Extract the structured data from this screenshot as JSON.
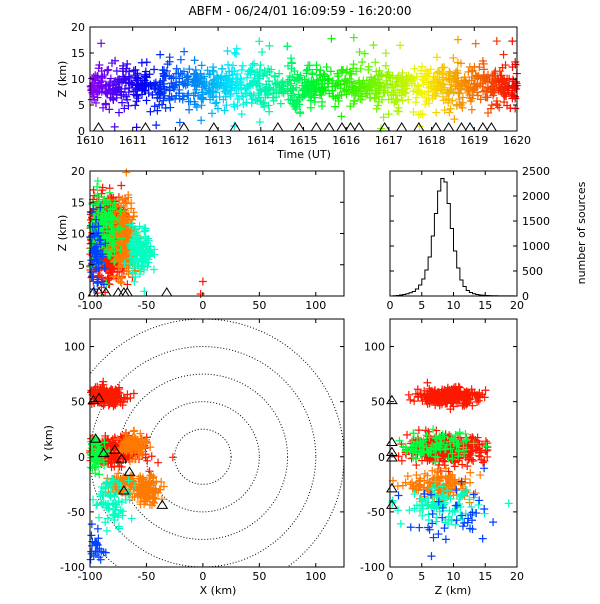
{
  "title": "ABFM - 06/24/01 16:09:59 - 16:20:00",
  "chart_data": [
    {
      "id": "time_height",
      "type": "scatter",
      "xlabel": "Time (UT)",
      "ylabel": "Z (km)",
      "xlim": [
        1610,
        1620
      ],
      "ylim": [
        0,
        20
      ],
      "x_ticks": [
        "1610",
        "1611",
        "1612",
        "1613",
        "1614",
        "1615",
        "1616",
        "1617",
        "1618",
        "1619",
        "1620"
      ],
      "y_ticks": [
        "0",
        "5",
        "10",
        "15",
        "20"
      ],
      "marker": "plus",
      "color_by": "time",
      "point_cloud": {
        "z_center": 8.5,
        "z_spread": 2.0,
        "min_z": 0.5,
        "max_z": 18
      },
      "stations_x": [
        1610.2,
        1611.3,
        1612.2,
        1612.9,
        1613.4,
        1614.4,
        1614.9,
        1615.3,
        1615.6,
        1615.9,
        1616.1,
        1616.3,
        1616.9,
        1617.3,
        1617.7,
        1618.1,
        1618.4,
        1618.7,
        1618.9,
        1619.2,
        1619.4
      ]
    },
    {
      "id": "x_height",
      "type": "scatter",
      "xlabel": "",
      "ylabel": "Z (km)",
      "xlim": [
        -100,
        125
      ],
      "ylim": [
        0,
        20
      ],
      "x_ticks": [
        "-100",
        "-50",
        "0",
        "50",
        "100"
      ],
      "y_ticks": [
        "0",
        "5",
        "10",
        "15",
        "20"
      ],
      "marker": "plus",
      "color_by": "time",
      "clusters": [
        {
          "x": -85,
          "y": 9.5,
          "sx": 8,
          "sy": 3,
          "n": 900,
          "color": "#ff1800"
        },
        {
          "x": -70,
          "y": 9,
          "sx": 6,
          "sy": 3,
          "n": 260,
          "color": "#ff7a00"
        },
        {
          "x": -90,
          "y": 11,
          "sx": 7,
          "sy": 3,
          "n": 160,
          "color": "#00ff40"
        },
        {
          "x": -55,
          "y": 7,
          "sx": 5,
          "sy": 2,
          "n": 120,
          "color": "#00ffc0"
        },
        {
          "x": -95,
          "y": 6,
          "sx": 5,
          "sy": 3,
          "n": 80,
          "color": "#0040ff"
        }
      ],
      "stations": [
        [
          -97,
          0
        ],
        [
          -92,
          0
        ],
        [
          -86,
          0
        ],
        [
          -75,
          0
        ],
        [
          -70,
          0
        ],
        [
          -67,
          0
        ],
        [
          -32,
          0
        ]
      ],
      "flashes": [
        [
          -2,
          0
        ],
        [
          0,
          2
        ]
      ]
    },
    {
      "id": "altitude_histogram",
      "type": "line",
      "xlabel": "",
      "ylabel": "number of sources",
      "xlim": [
        0,
        20
      ],
      "ylim": [
        0,
        2500
      ],
      "x_ticks": [
        "0",
        "5",
        "10",
        "15",
        "20"
      ],
      "y_ticks": [
        "0",
        "500",
        "1000",
        "1500",
        "2000",
        "2500"
      ],
      "x": [
        0,
        0.5,
        1,
        1.5,
        2,
        2.5,
        3,
        3.5,
        4,
        4.5,
        5,
        5.5,
        6,
        6.5,
        7,
        7.5,
        8,
        8.5,
        9,
        9.5,
        10,
        10.5,
        11,
        11.5,
        12,
        12.5,
        13,
        13.5,
        14,
        14.5,
        15,
        15.5,
        16,
        16.5,
        17,
        17.5,
        18,
        18.5,
        19,
        19.5,
        20
      ],
      "values": [
        0,
        5,
        10,
        20,
        30,
        45,
        65,
        90,
        140,
        220,
        340,
        520,
        780,
        1200,
        1650,
        2100,
        2350,
        2280,
        1850,
        1350,
        900,
        560,
        320,
        190,
        110,
        70,
        45,
        30,
        20,
        15,
        10,
        8,
        6,
        4,
        3,
        2,
        2,
        1,
        1,
        0,
        0
      ]
    },
    {
      "id": "plan_view",
      "type": "scatter",
      "xlabel": "X (km)",
      "ylabel": "Y (km)",
      "xlim": [
        -100,
        125
      ],
      "ylim": [
        -100,
        125
      ],
      "x_ticks": [
        "-100",
        "-50",
        "0",
        "50",
        "100"
      ],
      "y_ticks": [
        "-100",
        "-50",
        "0",
        "50",
        "100"
      ],
      "range_rings_km": [
        25,
        50,
        75,
        100,
        125
      ],
      "center": [
        0,
        0
      ],
      "marker": "plus",
      "clusters": [
        {
          "x": -85,
          "y": 55,
          "sx": 8,
          "sy": 4,
          "n": 200,
          "color": "#ff1800"
        },
        {
          "x": -78,
          "y": 5,
          "sx": 12,
          "sy": 6,
          "n": 320,
          "color": "#ff1800"
        },
        {
          "x": -62,
          "y": 10,
          "sx": 6,
          "sy": 5,
          "n": 110,
          "color": "#ff7a00"
        },
        {
          "x": -72,
          "y": -25,
          "sx": 6,
          "sy": 4,
          "n": 90,
          "color": "#ff7a00"
        },
        {
          "x": -50,
          "y": -30,
          "sx": 6,
          "sy": 6,
          "n": 120,
          "color": "#ff7a00"
        },
        {
          "x": -95,
          "y": 2,
          "sx": 5,
          "sy": 8,
          "n": 70,
          "color": "#00ff40"
        },
        {
          "x": -80,
          "y": -40,
          "sx": 8,
          "sy": 10,
          "n": 70,
          "color": "#00ffc0"
        },
        {
          "x": -95,
          "y": -80,
          "sx": 4,
          "sy": 8,
          "n": 30,
          "color": "#0040ff"
        }
      ],
      "stations": [
        [
          -97,
          50
        ],
        [
          -92,
          52
        ],
        [
          -95,
          15
        ],
        [
          -88,
          2
        ],
        [
          -78,
          5
        ],
        [
          -72,
          -3
        ],
        [
          -65,
          -15
        ],
        [
          -70,
          -32
        ],
        [
          -36,
          -45
        ]
      ]
    },
    {
      "id": "z_y",
      "type": "scatter",
      "xlabel": "Z (km)",
      "ylabel": "",
      "xlim": [
        0,
        20
      ],
      "ylim": [
        -100,
        125
      ],
      "x_ticks": [
        "0",
        "5",
        "10",
        "15",
        "20"
      ],
      "y_ticks": [
        "-100",
        "-50",
        "0",
        "50",
        "100"
      ],
      "marker": "plus",
      "clusters": [
        {
          "x": 9,
          "y": 55,
          "sx": 2.5,
          "sy": 4,
          "n": 260,
          "color": "#ff1800"
        },
        {
          "x": 9,
          "y": 7,
          "sx": 3,
          "sy": 6,
          "n": 360,
          "color": "#ff1800"
        },
        {
          "x": 8,
          "y": -27,
          "sx": 2.5,
          "sy": 6,
          "n": 140,
          "color": "#ff7a00"
        },
        {
          "x": 7,
          "y": 10,
          "sx": 3,
          "sy": 6,
          "n": 100,
          "color": "#00ff40"
        },
        {
          "x": 8,
          "y": -45,
          "sx": 3,
          "sy": 8,
          "n": 90,
          "color": "#00ffc0"
        },
        {
          "x": 10,
          "y": -60,
          "sx": 4,
          "sy": 15,
          "n": 40,
          "color": "#0040ff"
        }
      ],
      "stations": [
        [
          0.3,
          50
        ],
        [
          0.3,
          12
        ],
        [
          0.3,
          3
        ],
        [
          0.3,
          -2
        ],
        [
          0.3,
          -30
        ],
        [
          0.3,
          -45
        ]
      ]
    }
  ]
}
